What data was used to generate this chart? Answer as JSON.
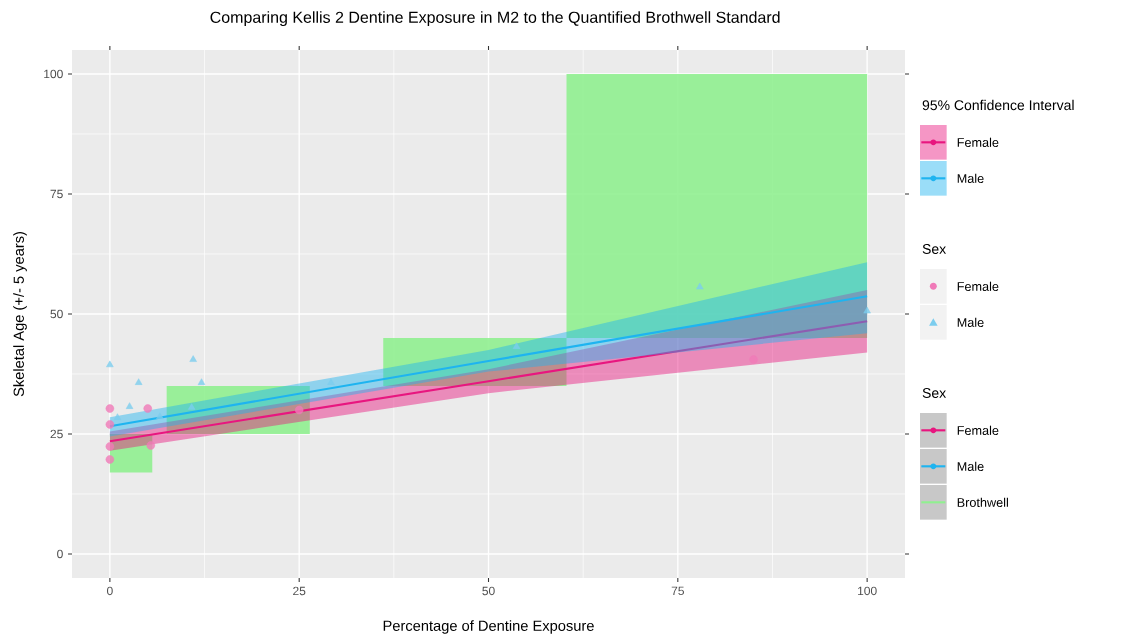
{
  "chart_data": {
    "type": "scatter",
    "title": "Comparing Kellis 2 Dentine Exposure in M2 to the Quantified Brothwell Standard",
    "xlabel": "Percentage of Dentine Exposure",
    "ylabel": "Skeletal Age (+/- 5 years)",
    "legend_title": [
      "95% Confidence Interval",
      "Sex",
      "Sex"
    ],
    "legend": "right",
    "grid": true,
    "xlim": [
      -5,
      105
    ],
    "ylim": [
      -5,
      105
    ],
    "xticks": [
      0,
      25,
      50,
      75,
      100
    ],
    "yticks": [
      0,
      25,
      50,
      75,
      100
    ],
    "series": [
      {
        "name": "Brothwell",
        "type": "area",
        "color": "#90f090",
        "x": [
          0,
          5.6,
          6.5,
          7.5,
          26.4,
          30,
          36.1,
          60.3,
          60.3,
          100
        ],
        "values": [
          null,
          null,
          null,
          null,
          null,
          null,
          null,
          null,
          null,
          null
        ],
        "lower": [
          17,
          17,
          null,
          25,
          25,
          null,
          35,
          35,
          45,
          45
        ],
        "upper": [
          25,
          25,
          null,
          35,
          35,
          null,
          45,
          45,
          100,
          100
        ]
      },
      {
        "name": "Female",
        "type": "line",
        "color": "#e8167f",
        "x": [
          0,
          50,
          100
        ],
        "values": [
          23.5,
          36,
          48.5
        ],
        "lower": [
          21.5,
          33.5,
          42
        ],
        "upper": [
          25.5,
          38.5,
          55
        ]
      },
      {
        "name": "Male",
        "type": "line",
        "color": "#1eb4f0",
        "x": [
          0,
          50,
          100
        ],
        "values": [
          26.6,
          40.2,
          53.7
        ],
        "lower": [
          24.5,
          38,
          46
        ],
        "upper": [
          28.5,
          42.5,
          60.8
        ]
      },
      {
        "name": "Female",
        "type": "scatter",
        "marker": "circle",
        "color": "#f07ab8",
        "x": [
          0,
          0,
          0,
          0,
          5,
          5.4,
          25,
          85
        ],
        "values": [
          30.3,
          27,
          22.4,
          19.7,
          30.3,
          22.6,
          30,
          40.5
        ]
      },
      {
        "name": "Male",
        "type": "scatter",
        "marker": "triangle",
        "color": "#7ccdee",
        "x": [
          0,
          1,
          2.6,
          3.8,
          6.6,
          10.8,
          11,
          12.1,
          29.2,
          53.7,
          77.9,
          100
        ],
        "values": [
          39.4,
          28.4,
          30.7,
          35.7,
          28.6,
          30.5,
          40.5,
          35.7,
          35.7,
          43.2,
          55.6,
          50.6
        ]
      }
    ]
  }
}
